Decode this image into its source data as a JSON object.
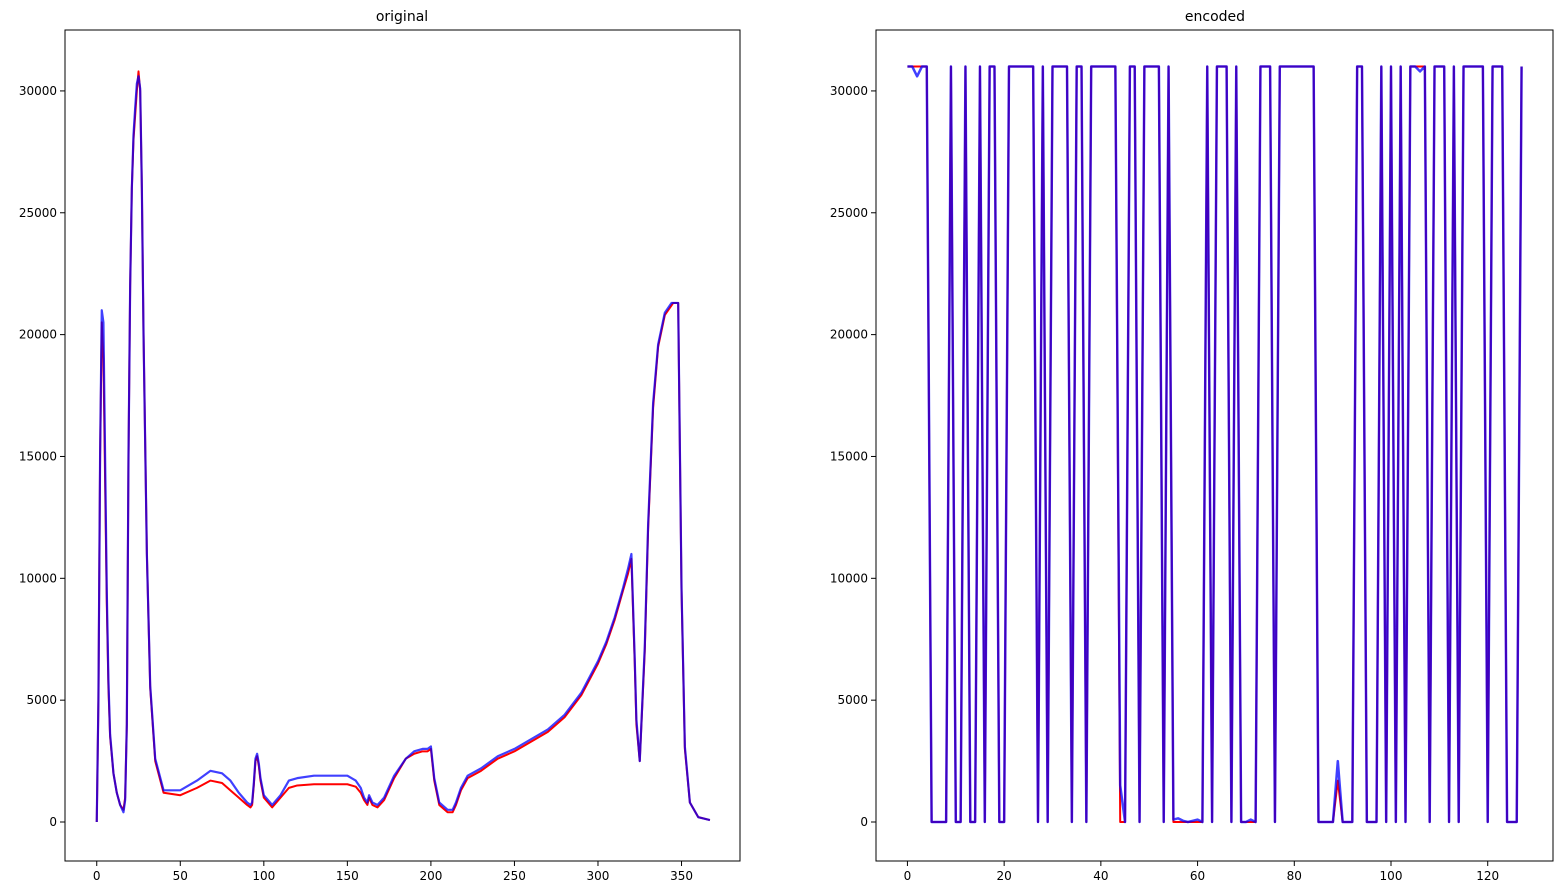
{
  "colors": {
    "primary": "#ff0000",
    "comparison": "#0000ff",
    "overlap": "#800080",
    "frame": "#000000"
  },
  "chart_data": [
    {
      "type": "line",
      "title": "original",
      "xlabel": "",
      "ylabel": "",
      "xlim": [
        -19,
        385
      ],
      "ylim": [
        -1600,
        32500
      ],
      "xticks": [
        0,
        50,
        100,
        150,
        200,
        250,
        300,
        350
      ],
      "yticks": [
        0,
        5000,
        10000,
        15000,
        20000,
        25000,
        30000
      ],
      "grid": false,
      "legend": "none",
      "series": [
        {
          "color": "#ff0000",
          "x": [
            0,
            1,
            2,
            3,
            4,
            5,
            6,
            7,
            8,
            10,
            12,
            14,
            16,
            17,
            18,
            19,
            20,
            21,
            22,
            23,
            24,
            25,
            26,
            27,
            28,
            30,
            32,
            35,
            40,
            50,
            60,
            68,
            75,
            80,
            85,
            90,
            92,
            93,
            94,
            95,
            96,
            97,
            98,
            100,
            105,
            110,
            115,
            120,
            130,
            140,
            150,
            155,
            158,
            160,
            162,
            163,
            165,
            168,
            172,
            178,
            185,
            190,
            195,
            198,
            200,
            202,
            205,
            210,
            213,
            215,
            218,
            222,
            230,
            240,
            250,
            260,
            270,
            280,
            290,
            300,
            305,
            310,
            315,
            318,
            320,
            322,
            323,
            325,
            328,
            330,
            333,
            336,
            340,
            344,
            345,
            346,
            348,
            350,
            352,
            355,
            360,
            367
          ],
          "y": [
            0,
            5000,
            15000,
            20500,
            19000,
            14000,
            9000,
            5500,
            3500,
            2000,
            1200,
            700,
            500,
            1000,
            4000,
            15000,
            22000,
            26000,
            28000,
            29000,
            30000,
            30800,
            30000,
            26000,
            20000,
            11000,
            5500,
            2500,
            1200,
            1100,
            1400,
            1700,
            1600,
            1300,
            1000,
            700,
            600,
            700,
            1500,
            2500,
            2700,
            2300,
            1700,
            1000,
            600,
            1000,
            1400,
            1500,
            1550,
            1550,
            1550,
            1450,
            1200,
            900,
            700,
            1000,
            700,
            600,
            900,
            1800,
            2600,
            2800,
            2900,
            2900,
            3000,
            1700,
            700,
            400,
            400,
            700,
            1300,
            1800,
            2100,
            2600,
            2900,
            3300,
            3700,
            4300,
            5200,
            6500,
            7300,
            8300,
            9500,
            10200,
            10800,
            6500,
            4000,
            2500,
            7000,
            12000,
            17000,
            19500,
            20800,
            21200,
            21300,
            21300,
            21300,
            9500,
            3000,
            800,
            200,
            80
          ]
        },
        {
          "color": "#0000ff",
          "x": [
            0,
            1,
            2,
            3,
            4,
            5,
            6,
            7,
            8,
            10,
            12,
            14,
            16,
            17,
            18,
            19,
            20,
            21,
            22,
            23,
            24,
            25,
            26,
            27,
            28,
            30,
            32,
            35,
            40,
            50,
            60,
            68,
            75,
            80,
            85,
            90,
            92,
            93,
            94,
            95,
            96,
            97,
            98,
            100,
            105,
            110,
            115,
            120,
            130,
            140,
            150,
            155,
            158,
            160,
            162,
            163,
            165,
            168,
            172,
            178,
            185,
            190,
            195,
            198,
            200,
            202,
            205,
            210,
            213,
            215,
            218,
            222,
            230,
            240,
            250,
            260,
            270,
            280,
            290,
            300,
            305,
            310,
            315,
            318,
            320,
            322,
            323,
            325,
            328,
            330,
            333,
            336,
            340,
            344,
            345,
            346,
            348,
            350,
            352,
            355,
            360,
            367
          ],
          "y": [
            0,
            5000,
            15000,
            21000,
            20500,
            15000,
            9500,
            5800,
            3600,
            2000,
            1200,
            700,
            400,
            900,
            4000,
            15000,
            22000,
            26000,
            28200,
            29300,
            30300,
            30600,
            30100,
            26000,
            20000,
            11000,
            5600,
            2600,
            1300,
            1300,
            1700,
            2100,
            2000,
            1700,
            1200,
            800,
            700,
            800,
            1600,
            2600,
            2800,
            2400,
            1800,
            1100,
            700,
            1100,
            1700,
            1800,
            1900,
            1900,
            1900,
            1700,
            1400,
            1000,
            800,
            1100,
            800,
            700,
            1000,
            1900,
            2600,
            2900,
            3000,
            3000,
            3100,
            1800,
            800,
            500,
            500,
            800,
            1400,
            1900,
            2200,
            2700,
            3000,
            3400,
            3800,
            4400,
            5300,
            6600,
            7400,
            8400,
            9600,
            10400,
            11000,
            6700,
            4200,
            2500,
            7200,
            12200,
            17200,
            19600,
            20900,
            21300,
            21300,
            21300,
            21300,
            9600,
            3100,
            800,
            200,
            80
          ]
        }
      ]
    },
    {
      "type": "line",
      "title": "encoded",
      "xlabel": "",
      "ylabel": "",
      "xlim": [
        -6.5,
        133.5
      ],
      "ylim": [
        -1600,
        32500
      ],
      "xticks": [
        0,
        20,
        40,
        60,
        80,
        100,
        120
      ],
      "yticks": [
        0,
        5000,
        10000,
        15000,
        20000,
        25000,
        30000
      ],
      "grid": false,
      "legend": "none",
      "series": [
        {
          "color": "#ff0000",
          "x": [
            0,
            1,
            2,
            3,
            4,
            5,
            6,
            7,
            8,
            9,
            10,
            11,
            12,
            13,
            14,
            15,
            16,
            17,
            18,
            19,
            20,
            21,
            22,
            23,
            24,
            25,
            26,
            27,
            28,
            29,
            30,
            31,
            32,
            33,
            34,
            35,
            36,
            37,
            38,
            39,
            40,
            41,
            42,
            43,
            44,
            45,
            46,
            47,
            48,
            49,
            50,
            51,
            52,
            53,
            54,
            55,
            56,
            57,
            58,
            59,
            60,
            61,
            62,
            63,
            64,
            65,
            66,
            67,
            68,
            69,
            70,
            71,
            72,
            73,
            74,
            75,
            76,
            77,
            78,
            79,
            80,
            81,
            82,
            83,
            84,
            85,
            86,
            87,
            88,
            89,
            90,
            91,
            92,
            93,
            94,
            95,
            96,
            97,
            98,
            99,
            100,
            101,
            102,
            103,
            104,
            105,
            106,
            107,
            108,
            109,
            110,
            111,
            112,
            113,
            114,
            115,
            116,
            117,
            118,
            119,
            120,
            121,
            122,
            123,
            124,
            125,
            126,
            127
          ],
          "y": [
            31000,
            31000,
            31000,
            31000,
            31000,
            0,
            0,
            0,
            0,
            31000,
            0,
            0,
            31000,
            0,
            0,
            31000,
            0,
            31000,
            31000,
            0,
            0,
            31000,
            31000,
            31000,
            31000,
            31000,
            31000,
            0,
            31000,
            0,
            31000,
            31000,
            31000,
            31000,
            0,
            31000,
            31000,
            0,
            31000,
            31000,
            31000,
            31000,
            31000,
            31000,
            0,
            0,
            31000,
            31000,
            0,
            31000,
            31000,
            31000,
            31000,
            0,
            31000,
            0,
            0,
            0,
            0,
            0,
            0,
            0,
            31000,
            0,
            31000,
            31000,
            31000,
            0,
            31000,
            0,
            0,
            0,
            0,
            31000,
            31000,
            31000,
            0,
            31000,
            31000,
            31000,
            31000,
            31000,
            31000,
            31000,
            31000,
            0,
            0,
            0,
            0,
            1700,
            0,
            0,
            0,
            31000,
            31000,
            0,
            0,
            0,
            31000,
            0,
            31000,
            0,
            31000,
            0,
            31000,
            31000,
            31000,
            31000,
            0,
            31000,
            31000,
            31000,
            0,
            31000,
            0,
            31000,
            31000,
            31000,
            31000,
            31000,
            0,
            31000,
            31000,
            31000,
            0,
            0,
            0,
            31000
          ],
          "line_width": 2
        },
        {
          "color": "#0000ff",
          "x": [
            0,
            1,
            2,
            3,
            4,
            5,
            6,
            7,
            8,
            9,
            10,
            11,
            12,
            13,
            14,
            15,
            16,
            17,
            18,
            19,
            20,
            21,
            22,
            23,
            24,
            25,
            26,
            27,
            28,
            29,
            30,
            31,
            32,
            33,
            34,
            35,
            36,
            37,
            38,
            39,
            40,
            41,
            42,
            43,
            44,
            45,
            46,
            47,
            48,
            49,
            50,
            51,
            52,
            53,
            54,
            55,
            56,
            57,
            58,
            59,
            60,
            61,
            62,
            63,
            64,
            65,
            66,
            67,
            68,
            69,
            70,
            71,
            72,
            73,
            74,
            75,
            76,
            77,
            78,
            79,
            80,
            81,
            82,
            83,
            84,
            85,
            86,
            87,
            88,
            89,
            90,
            91,
            92,
            93,
            94,
            95,
            96,
            97,
            98,
            99,
            100,
            101,
            102,
            103,
            104,
            105,
            106,
            107,
            108,
            109,
            110,
            111,
            112,
            113,
            114,
            115,
            116,
            117,
            118,
            119,
            120,
            121,
            122,
            123,
            124,
            125,
            126,
            127
          ],
          "y": [
            31000,
            31000,
            30600,
            31000,
            31000,
            0,
            0,
            0,
            0,
            31000,
            0,
            0,
            31000,
            0,
            0,
            31000,
            0,
            31000,
            31000,
            0,
            0,
            31000,
            31000,
            31000,
            31000,
            31000,
            31000,
            0,
            31000,
            0,
            31000,
            31000,
            31000,
            31000,
            0,
            31000,
            31000,
            0,
            31000,
            31000,
            31000,
            31000,
            31000,
            31000,
            1500,
            0,
            31000,
            31000,
            0,
            31000,
            31000,
            31000,
            31000,
            0,
            31000,
            100,
            150,
            50,
            0,
            50,
            100,
            0,
            31000,
            0,
            31000,
            31000,
            31000,
            0,
            31000,
            0,
            0,
            100,
            0,
            31000,
            31000,
            31000,
            0,
            31000,
            31000,
            31000,
            31000,
            31000,
            31000,
            31000,
            31000,
            0,
            0,
            0,
            0,
            2500,
            0,
            0,
            0,
            31000,
            31000,
            0,
            0,
            0,
            31000,
            0,
            31000,
            0,
            31000,
            0,
            31000,
            31000,
            30800,
            31000,
            0,
            31000,
            31000,
            31000,
            0,
            31000,
            0,
            31000,
            31000,
            31000,
            31000,
            31000,
            0,
            31000,
            31000,
            31000,
            0,
            0,
            0,
            31000
          ],
          "line_width": 2.5
        }
      ]
    }
  ]
}
